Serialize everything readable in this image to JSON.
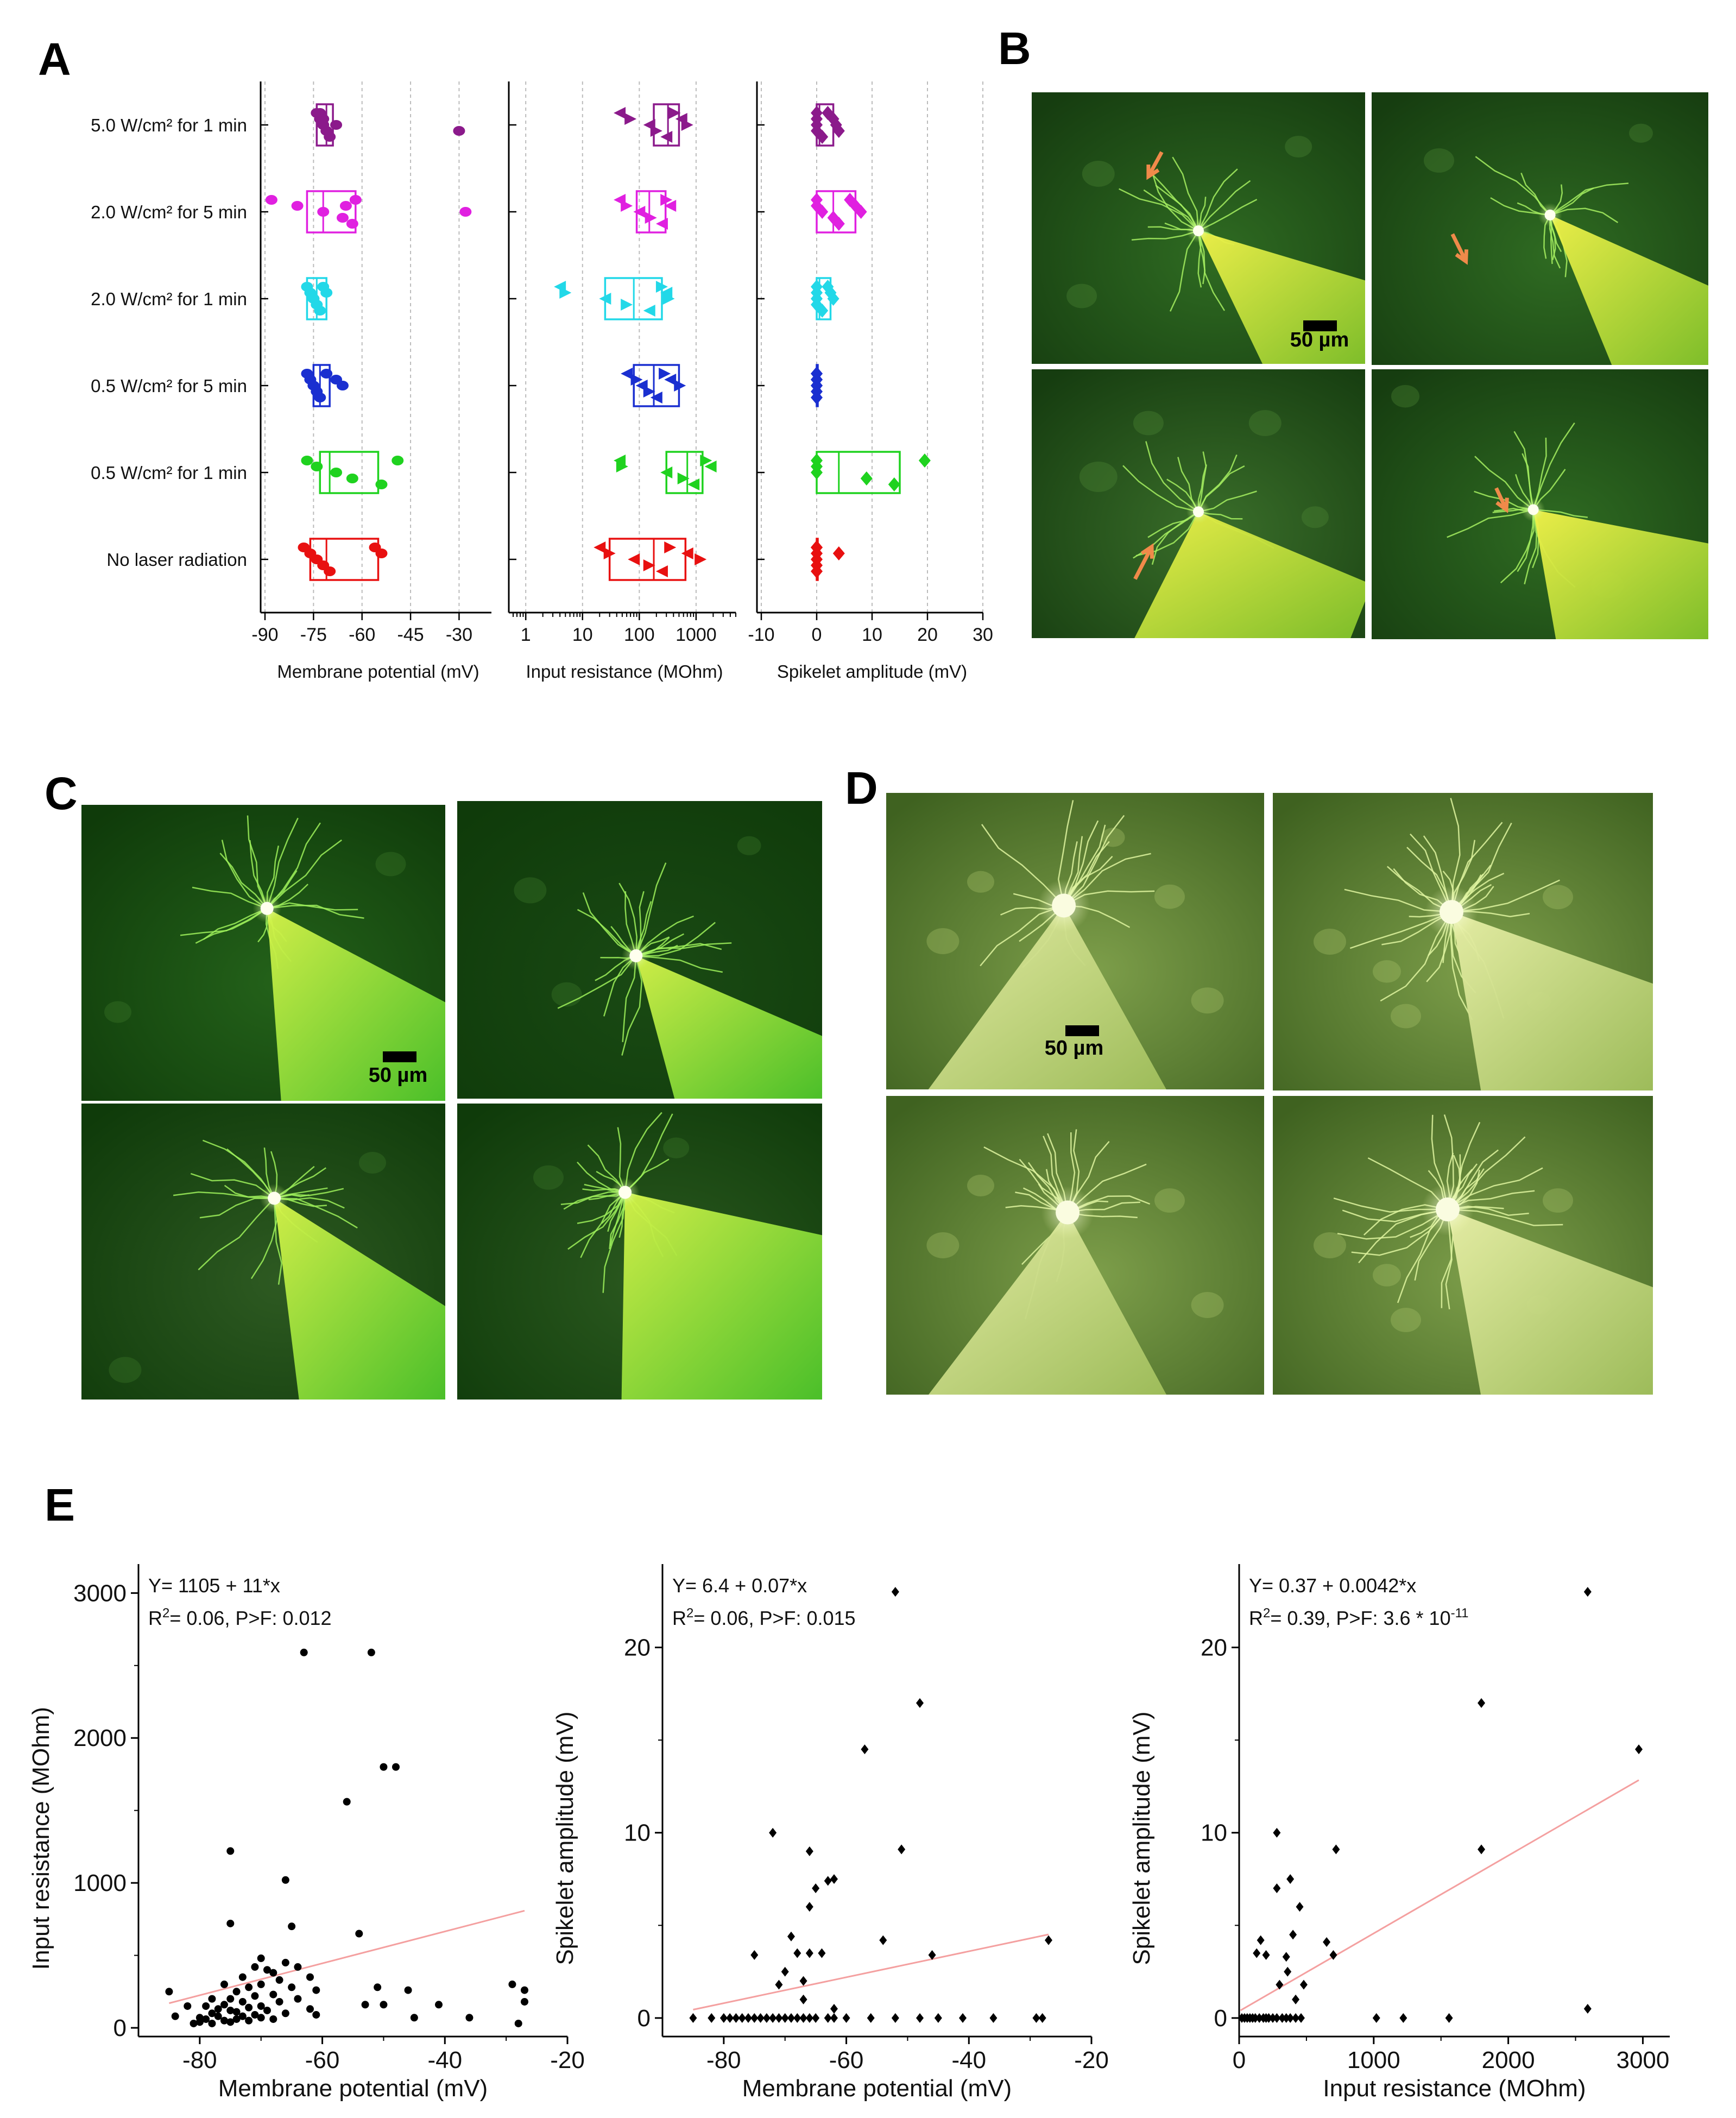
{
  "panels": {
    "A": "A",
    "B": "B",
    "C": "C",
    "D": "D",
    "E": "E"
  },
  "scale_bar": "50 µm",
  "colors": {
    "purple": "#8B1A8B",
    "magenta": "#E020E0",
    "cyan": "#22D8E8",
    "blue": "#1A2FD0",
    "green": "#1FD21F",
    "red": "#E81010",
    "arrow": "#F08A4A",
    "fit_line": "#F4A0A0",
    "point": "#000000"
  },
  "chart_data": [
    {
      "type": "box",
      "id": "A1",
      "xlabel": "Membrane potential (mV)",
      "xlim": [
        -90,
        -20
      ],
      "xticks": [
        "-90",
        "-75",
        "-60",
        "-45",
        "-30"
      ],
      "categories": [
        "5.0 W/cm² for 1 min",
        "2.0 W/cm² for 5 min",
        "2.0 W/cm² for 1 min",
        "0.5 W/cm² for 5 min",
        "0.5 W/cm² for 1 min",
        "No laser radiation"
      ],
      "series": [
        {
          "color": "#8B1A8B",
          "q1": -74,
          "median": -71,
          "q3": -69,
          "points": [
            -74,
            -73,
            -72,
            -71,
            -70,
            -73,
            -72,
            -68,
            -30
          ]
        },
        {
          "color": "#E020E0",
          "q1": -77,
          "median": -72,
          "q3": -62,
          "points": [
            -88,
            -80,
            -72,
            -66,
            -63,
            -62,
            -65,
            -28
          ]
        },
        {
          "color": "#22D8E8",
          "q1": -77,
          "median": -74,
          "q3": -71,
          "points": [
            -77,
            -76,
            -75,
            -74,
            -73,
            -72,
            -71,
            -75
          ]
        },
        {
          "color": "#1A2FD0",
          "q1": -75,
          "median": -73,
          "q3": -70,
          "points": [
            -77,
            -76,
            -75,
            -74,
            -73,
            -71,
            -68,
            -66
          ]
        },
        {
          "color": "#1FD21F",
          "q1": -73,
          "median": -70,
          "q3": -55,
          "points": [
            -77,
            -74,
            -68,
            -63,
            -54,
            -49
          ]
        },
        {
          "color": "#E81010",
          "q1": -76,
          "median": -71,
          "q3": -55,
          "points": [
            -78,
            -76,
            -74,
            -72,
            -70,
            -56,
            -54
          ]
        }
      ]
    },
    {
      "type": "box",
      "id": "A2",
      "xlabel": "Input resistance (MOhm)",
      "xscale": "log",
      "xlim": [
        0.6,
        5000
      ],
      "xticks": [
        "1",
        "10",
        "100",
        "1000"
      ],
      "series": [
        {
          "color": "#8B1A8B",
          "q1": 180,
          "median": 320,
          "q3": 500,
          "points": [
            45,
            70,
            150,
            200,
            300,
            420,
            550,
            700
          ]
        },
        {
          "color": "#E020E0",
          "q1": 90,
          "median": 150,
          "q3": 290,
          "points": [
            45,
            60,
            100,
            160,
            250,
            300,
            350
          ]
        },
        {
          "color": "#22D8E8",
          "q1": 25,
          "median": 80,
          "q3": 250,
          "points": [
            4,
            5,
            25,
            60,
            150,
            250,
            300,
            330
          ]
        },
        {
          "color": "#1A2FD0",
          "q1": 80,
          "median": 180,
          "q3": 500,
          "points": [
            60,
            90,
            110,
            150,
            200,
            280,
            350,
            520
          ]
        },
        {
          "color": "#1FD21F",
          "q1": 300,
          "median": 700,
          "q3": 1300,
          "points": [
            45,
            50,
            300,
            600,
            900,
            1500,
            1800
          ]
        },
        {
          "color": "#E81010",
          "q1": 30,
          "median": 180,
          "q3": 650,
          "points": [
            20,
            30,
            80,
            150,
            250,
            350,
            700,
            1200
          ]
        }
      ]
    },
    {
      "type": "box",
      "id": "A3",
      "xlabel": "Spikelet amplitude (mV)",
      "xlim": [
        -10,
        30
      ],
      "xticks": [
        "-10",
        "0",
        "10",
        "20",
        "30"
      ],
      "series": [
        {
          "color": "#8B1A8B",
          "q1": 0,
          "median": 0.5,
          "q3": 3,
          "points": [
            0,
            0,
            0,
            0,
            1,
            2,
            3,
            3.5,
            4
          ]
        },
        {
          "color": "#E020E0",
          "q1": 0,
          "median": 3,
          "q3": 7,
          "points": [
            0,
            0,
            1,
            3,
            4,
            6,
            7,
            8
          ]
        },
        {
          "color": "#22D8E8",
          "q1": 0,
          "median": 0.5,
          "q3": 2.5,
          "points": [
            0,
            0,
            0,
            0,
            1,
            2,
            2.5,
            3
          ]
        },
        {
          "color": "#1A2FD0",
          "q1": 0,
          "median": 0,
          "q3": 0,
          "points": [
            0,
            0,
            0,
            0,
            0,
            0,
            0,
            0
          ]
        },
        {
          "color": "#1FD21F",
          "q1": 0,
          "median": 4,
          "q3": 15,
          "points": [
            0,
            0,
            0,
            9,
            14,
            19.5
          ]
        },
        {
          "color": "#E81010",
          "q1": 0,
          "median": 0,
          "q3": 0,
          "points": [
            0,
            0,
            0,
            0,
            0,
            0,
            4
          ]
        }
      ]
    },
    {
      "type": "scatter",
      "id": "E1",
      "xlabel": "Membrane potential (mV)",
      "ylabel": "Input resistance (MOhm)",
      "xlim": [
        -90,
        -20
      ],
      "ylim": [
        -60,
        3200
      ],
      "xticks": [
        -80,
        -60,
        -40,
        -20
      ],
      "yticks": [
        0,
        1000,
        2000,
        3000
      ],
      "annotation": [
        "Y= 1105 + 11*x",
        "R2= 0.06, P>F: 0.012"
      ],
      "fit": {
        "x": [
          -85,
          -27
        ],
        "y": [
          170,
          808
        ]
      },
      "points": [
        [
          -85,
          250
        ],
        [
          -84,
          80
        ],
        [
          -82,
          150
        ],
        [
          -81,
          30
        ],
        [
          -80,
          40
        ],
        [
          -80,
          70
        ],
        [
          -79,
          60
        ],
        [
          -79,
          150
        ],
        [
          -78,
          30
        ],
        [
          -78,
          100
        ],
        [
          -78,
          200
        ],
        [
          -77,
          80
        ],
        [
          -77,
          130
        ],
        [
          -76,
          50
        ],
        [
          -76,
          160
        ],
        [
          -76,
          300
        ],
        [
          -75,
          40
        ],
        [
          -75,
          120
        ],
        [
          -75,
          200
        ],
        [
          -75,
          720
        ],
        [
          -75,
          1220
        ],
        [
          -74,
          60
        ],
        [
          -74,
          110
        ],
        [
          -74,
          250
        ],
        [
          -73,
          80
        ],
        [
          -73,
          180
        ],
        [
          -73,
          350
        ],
        [
          -72,
          50
        ],
        [
          -72,
          140
        ],
        [
          -72,
          280
        ],
        [
          -71,
          90
        ],
        [
          -71,
          220
        ],
        [
          -71,
          420
        ],
        [
          -70,
          70
        ],
        [
          -70,
          150
        ],
        [
          -70,
          300
        ],
        [
          -70,
          480
        ],
        [
          -69,
          120
        ],
        [
          -69,
          400
        ],
        [
          -68,
          60
        ],
        [
          -68,
          230
        ],
        [
          -68,
          380
        ],
        [
          -67,
          180
        ],
        [
          -67,
          330
        ],
        [
          -66,
          1020
        ],
        [
          -66,
          100
        ],
        [
          -66,
          450
        ],
        [
          -65,
          280
        ],
        [
          -65,
          700
        ],
        [
          -64,
          200
        ],
        [
          -64,
          420
        ],
        [
          -63,
          2590
        ],
        [
          -62,
          130
        ],
        [
          -62,
          350
        ],
        [
          -61,
          260
        ],
        [
          -61,
          90
        ],
        [
          -56,
          1560
        ],
        [
          -54,
          650
        ],
        [
          -53,
          160
        ],
        [
          -52,
          2590
        ],
        [
          -51,
          280
        ],
        [
          -50,
          1800
        ],
        [
          -50,
          160
        ],
        [
          -48,
          1800
        ],
        [
          -46,
          260
        ],
        [
          -45,
          70
        ],
        [
          -41,
          160
        ],
        [
          -36,
          70
        ],
        [
          -29,
          300
        ],
        [
          -28,
          30
        ],
        [
          -27,
          180
        ],
        [
          -27,
          260
        ]
      ]
    },
    {
      "type": "scatter",
      "id": "E2",
      "xlabel": "Membrane potential (mV)",
      "ylabel": "Spikelet amplitude (mV)",
      "xlim": [
        -90,
        -20
      ],
      "ylim": [
        -1,
        24.5
      ],
      "xticks": [
        -80,
        -60,
        -40,
        -20
      ],
      "yticks": [
        0,
        10,
        20
      ],
      "annotation": [
        "Y= 6.4 + 0.07*x",
        "R2= 0.06, P>F: 0.015"
      ],
      "fit": {
        "x": [
          -85,
          -27
        ],
        "y": [
          0.45,
          4.51
        ]
      },
      "points": [
        [
          -85,
          0
        ],
        [
          -82,
          0
        ],
        [
          -80,
          0
        ],
        [
          -79,
          0
        ],
        [
          -78,
          0
        ],
        [
          -77,
          0
        ],
        [
          -76,
          0
        ],
        [
          -75,
          0
        ],
        [
          -74,
          0
        ],
        [
          -73,
          0
        ],
        [
          -72,
          0
        ],
        [
          -71,
          0
        ],
        [
          -70,
          0
        ],
        [
          -69,
          0
        ],
        [
          -68,
          0
        ],
        [
          -67,
          0
        ],
        [
          -66,
          0
        ],
        [
          -65,
          0
        ],
        [
          -63,
          0
        ],
        [
          -62,
          0
        ],
        [
          -60,
          0
        ],
        [
          -56,
          0
        ],
        [
          -52,
          0
        ],
        [
          -48,
          0
        ],
        [
          -45,
          0
        ],
        [
          -41,
          0
        ],
        [
          -36,
          0
        ],
        [
          -29,
          0
        ],
        [
          -28,
          0
        ],
        [
          -75,
          3.4
        ],
        [
          -72,
          10
        ],
        [
          -71,
          1.8
        ],
        [
          -70,
          2.5
        ],
        [
          -69,
          4.4
        ],
        [
          -68,
          3.5
        ],
        [
          -67,
          2
        ],
        [
          -67,
          1
        ],
        [
          -66,
          9
        ],
        [
          -66,
          6
        ],
        [
          -66,
          3.5
        ],
        [
          -65,
          7
        ],
        [
          -64,
          3.5
        ],
        [
          -63,
          7.4
        ],
        [
          -62,
          0.5
        ],
        [
          -62,
          7.5
        ],
        [
          -57,
          14.5
        ],
        [
          -54,
          4.2
        ],
        [
          -52,
          23
        ],
        [
          -51,
          9.1
        ],
        [
          -48,
          17
        ],
        [
          -46,
          3.4
        ],
        [
          -27,
          4.2
        ]
      ]
    },
    {
      "type": "scatter",
      "id": "E3",
      "xlabel": "Input resistance (MOhm)",
      "ylabel": "Spikelet amplitude (mV)",
      "xlim": [
        0,
        3200
      ],
      "ylim": [
        -1,
        24.5
      ],
      "xticks": [
        0,
        1000,
        2000,
        3000
      ],
      "yticks": [
        0,
        10,
        20
      ],
      "annotation": [
        "Y= 0.37 + 0.0042*x",
        "R2= 0.39, P>F: 3.6 * 10-11"
      ],
      "fit": {
        "x": [
          10,
          2970
        ],
        "y": [
          0.41,
          12.84
        ]
      },
      "points": [
        [
          20,
          0
        ],
        [
          40,
          0
        ],
        [
          60,
          0
        ],
        [
          80,
          0
        ],
        [
          100,
          0
        ],
        [
          120,
          0
        ],
        [
          150,
          0
        ],
        [
          180,
          0
        ],
        [
          200,
          0
        ],
        [
          220,
          0
        ],
        [
          250,
          0
        ],
        [
          280,
          0
        ],
        [
          320,
          0
        ],
        [
          350,
          0
        ],
        [
          380,
          0
        ],
        [
          420,
          0
        ],
        [
          460,
          0
        ],
        [
          1020,
          0
        ],
        [
          1220,
          0
        ],
        [
          1560,
          0
        ],
        [
          130,
          3.5
        ],
        [
          160,
          4.2
        ],
        [
          200,
          3.4
        ],
        [
          280,
          7
        ],
        [
          280,
          10
        ],
        [
          300,
          1.8
        ],
        [
          350,
          3.3
        ],
        [
          360,
          2.5
        ],
        [
          380,
          7.5
        ],
        [
          400,
          4.5
        ],
        [
          420,
          1
        ],
        [
          450,
          6
        ],
        [
          480,
          1.8
        ],
        [
          650,
          4.1
        ],
        [
          700,
          3.4
        ],
        [
          720,
          9.1
        ],
        [
          1800,
          17
        ],
        [
          1800,
          9.1
        ],
        [
          2590,
          23
        ],
        [
          2590,
          0.5
        ],
        [
          2970,
          14.5
        ]
      ]
    }
  ],
  "A_annotations": {
    "red_small": "*",
    "green_small": "x"
  },
  "E_annotation_parts": {
    "E1_r": "R",
    "E1_rest": "= 0.06, P>F: 0.012",
    "E2_r": "R",
    "E2_rest": "= 0.06, P>F: 0.015",
    "E3_r": "R",
    "E3_rest": "= 0.39, P>F: 3.6 * 10",
    "sup2": "2",
    "exp": "-11"
  }
}
